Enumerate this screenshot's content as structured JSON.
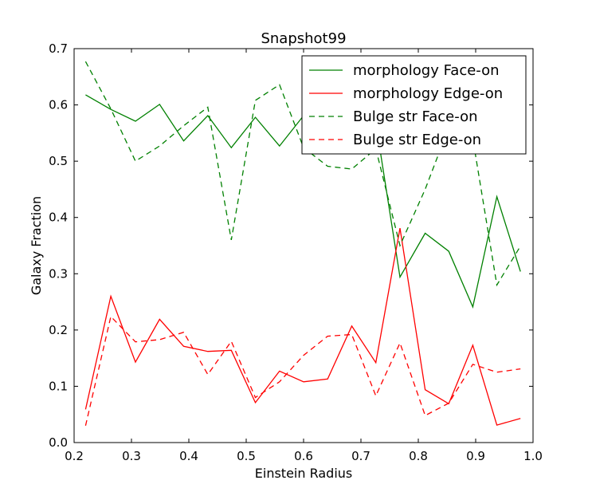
{
  "chart_data": {
    "type": "line",
    "title": "Snapshot99",
    "xlabel": "Einstein Radius",
    "ylabel": "Galaxy Fraction",
    "xlim": [
      0.2,
      1.0
    ],
    "ylim": [
      0.0,
      0.7
    ],
    "xticks": [
      "0.2",
      "0.3",
      "0.4",
      "0.5",
      "0.6",
      "0.7",
      "0.8",
      "0.9",
      "1.0"
    ],
    "yticks": [
      "0.0",
      "0.1",
      "0.2",
      "0.3",
      "0.4",
      "0.5",
      "0.6",
      "0.7"
    ],
    "grid": false,
    "legend": "top-right",
    "x": [
      0.22,
      0.264,
      0.307,
      0.349,
      0.391,
      0.433,
      0.474,
      0.516,
      0.558,
      0.6,
      0.642,
      0.684,
      0.726,
      0.768,
      0.812,
      0.853,
      0.895,
      0.937,
      0.978
    ],
    "series": [
      {
        "name": "morphology Face-on",
        "color": "#008000",
        "dash": "solid",
        "values": [
          0.618,
          0.592,
          0.571,
          0.601,
          0.536,
          0.581,
          0.524,
          0.578,
          0.527,
          0.581,
          0.562,
          0.573,
          0.568,
          0.294,
          0.372,
          0.34,
          0.241,
          0.437,
          0.304
        ]
      },
      {
        "name": "morphology Edge-on",
        "color": "#ff0000",
        "dash": "solid",
        "values": [
          0.059,
          0.26,
          0.143,
          0.219,
          0.171,
          0.162,
          0.164,
          0.071,
          0.127,
          0.108,
          0.113,
          0.207,
          0.142,
          0.381,
          0.094,
          0.069,
          0.173,
          0.031,
          0.043
        ]
      },
      {
        "name": "Bulge str Face-on",
        "color": "#008000",
        "dash": "dashed",
        "values": [
          0.677,
          0.593,
          0.5,
          0.527,
          0.563,
          0.596,
          0.36,
          0.608,
          0.636,
          0.524,
          0.491,
          0.486,
          0.522,
          0.35,
          0.45,
          0.56,
          0.54,
          0.28,
          0.349
        ]
      },
      {
        "name": "Bulge str Edge-on",
        "color": "#ff0000",
        "dash": "dashed",
        "values": [
          0.03,
          0.224,
          0.179,
          0.183,
          0.196,
          0.121,
          0.18,
          0.08,
          0.108,
          0.155,
          0.189,
          0.192,
          0.083,
          0.177,
          0.048,
          0.07,
          0.139,
          0.125,
          0.131
        ]
      }
    ]
  }
}
